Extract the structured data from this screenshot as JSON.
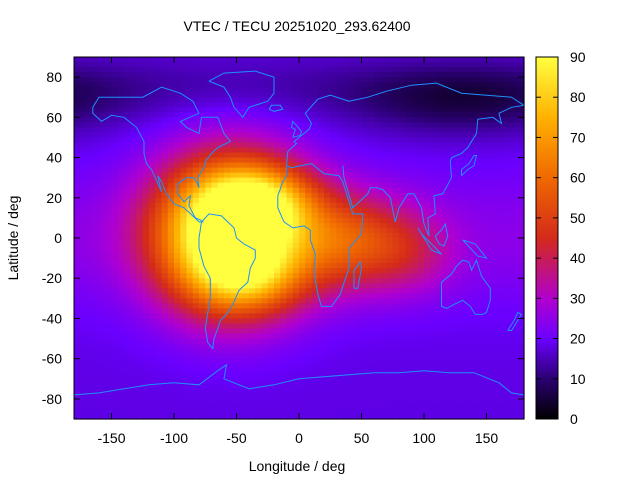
{
  "chart_data": {
    "type": "heatmap",
    "title": "VTEC / TECU 20251020_293.62400",
    "xlabel": "Longitude / deg",
    "ylabel": "Latitude / deg",
    "xlim": [
      -180,
      180
    ],
    "ylim": [
      -90,
      90
    ],
    "xticks": [
      -150,
      -100,
      -50,
      0,
      50,
      100,
      150
    ],
    "yticks": [
      -80,
      -60,
      -40,
      -20,
      0,
      20,
      40,
      60,
      80
    ],
    "colorbar": {
      "range": [
        0,
        90
      ],
      "ticks": [
        0,
        10,
        20,
        30,
        40,
        50,
        60,
        70,
        80,
        90
      ]
    },
    "colormap": [
      "#000000",
      "#2a0070",
      "#6a00ff",
      "#b000d0",
      "#d42a1a",
      "#f06a00",
      "#ffb000",
      "#ffff40"
    ],
    "background_tec": 18,
    "features": [
      {
        "name": "equatorial-anomaly-south-america",
        "lon": -55,
        "lat": 2,
        "peak": 88,
        "sigma_lon": 40,
        "sigma_lat": 25
      },
      {
        "name": "anomaly-crest-north-atlantic",
        "lon": -30,
        "lat": 18,
        "peak": 30,
        "sigma_lon": 30,
        "sigma_lat": 12
      },
      {
        "name": "anomaly-crest-south-atlantic",
        "lon": -40,
        "lat": -20,
        "peak": 20,
        "sigma_lon": 30,
        "sigma_lat": 12
      },
      {
        "name": "africa-extension",
        "lon": 40,
        "lat": -2,
        "peak": 30,
        "sigma_lon": 35,
        "sigma_lat": 16
      },
      {
        "name": "indian-ocean-tail",
        "lon": 90,
        "lat": -8,
        "peak": 10,
        "sigma_lon": 25,
        "sigma_lat": 14
      },
      {
        "name": "north-pacific-trough",
        "lon": 130,
        "lat": 68,
        "peak": -10,
        "sigma_lon": 60,
        "sigma_lat": 12
      }
    ],
    "coastline_color": "#1e90ff"
  }
}
